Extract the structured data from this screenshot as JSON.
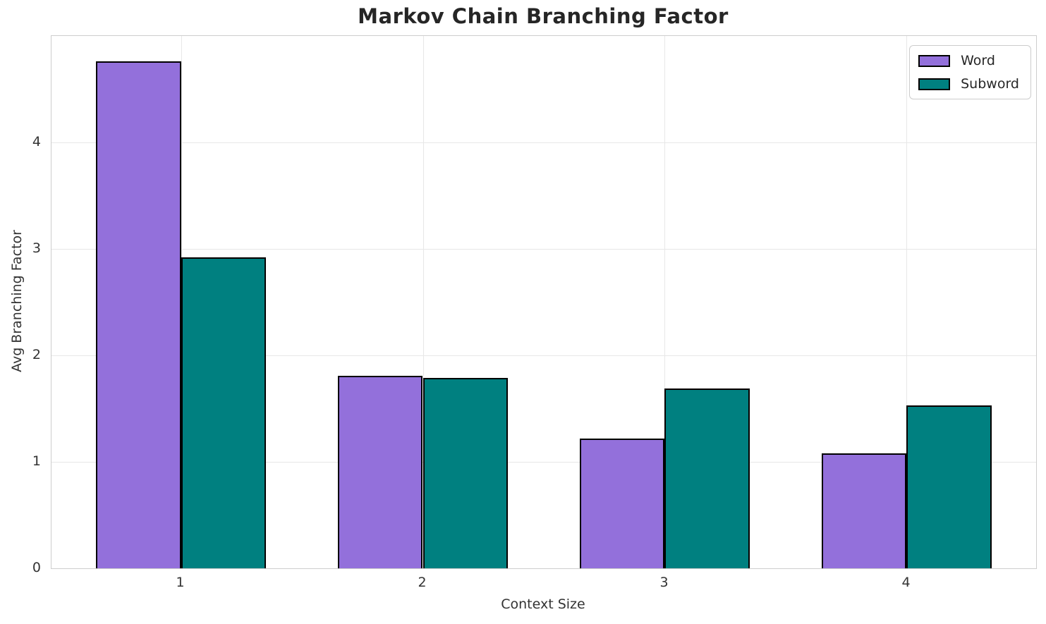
{
  "chart_data": {
    "type": "bar",
    "title": "Markov Chain Branching Factor",
    "xlabel": "Context Size",
    "ylabel": "Avg Branching Factor",
    "categories": [
      "1",
      "2",
      "3",
      "4"
    ],
    "x_positions": [
      1,
      2,
      3,
      4
    ],
    "series": [
      {
        "name": "Word",
        "color": "#9370DB",
        "values": [
          4.76,
          1.81,
          1.22,
          1.08
        ]
      },
      {
        "name": "Subword",
        "color": "#008080",
        "values": [
          2.92,
          1.79,
          1.69,
          1.53
        ]
      }
    ],
    "bar_width_fraction": 0.35,
    "bar_edge_color": "#000000",
    "ylim": [
      0,
      5.0
    ],
    "xlim": [
      0.465,
      4.535
    ],
    "yticks": [
      0,
      1,
      2,
      3,
      4
    ],
    "grid": true,
    "grid_color": "#e7e7e7",
    "spine_color": "#cdcdcd",
    "background_color": "#ffffff",
    "text_color": "#262626",
    "legend": {
      "position": "upper-right",
      "labels": [
        "Word",
        "Subword"
      ]
    }
  }
}
